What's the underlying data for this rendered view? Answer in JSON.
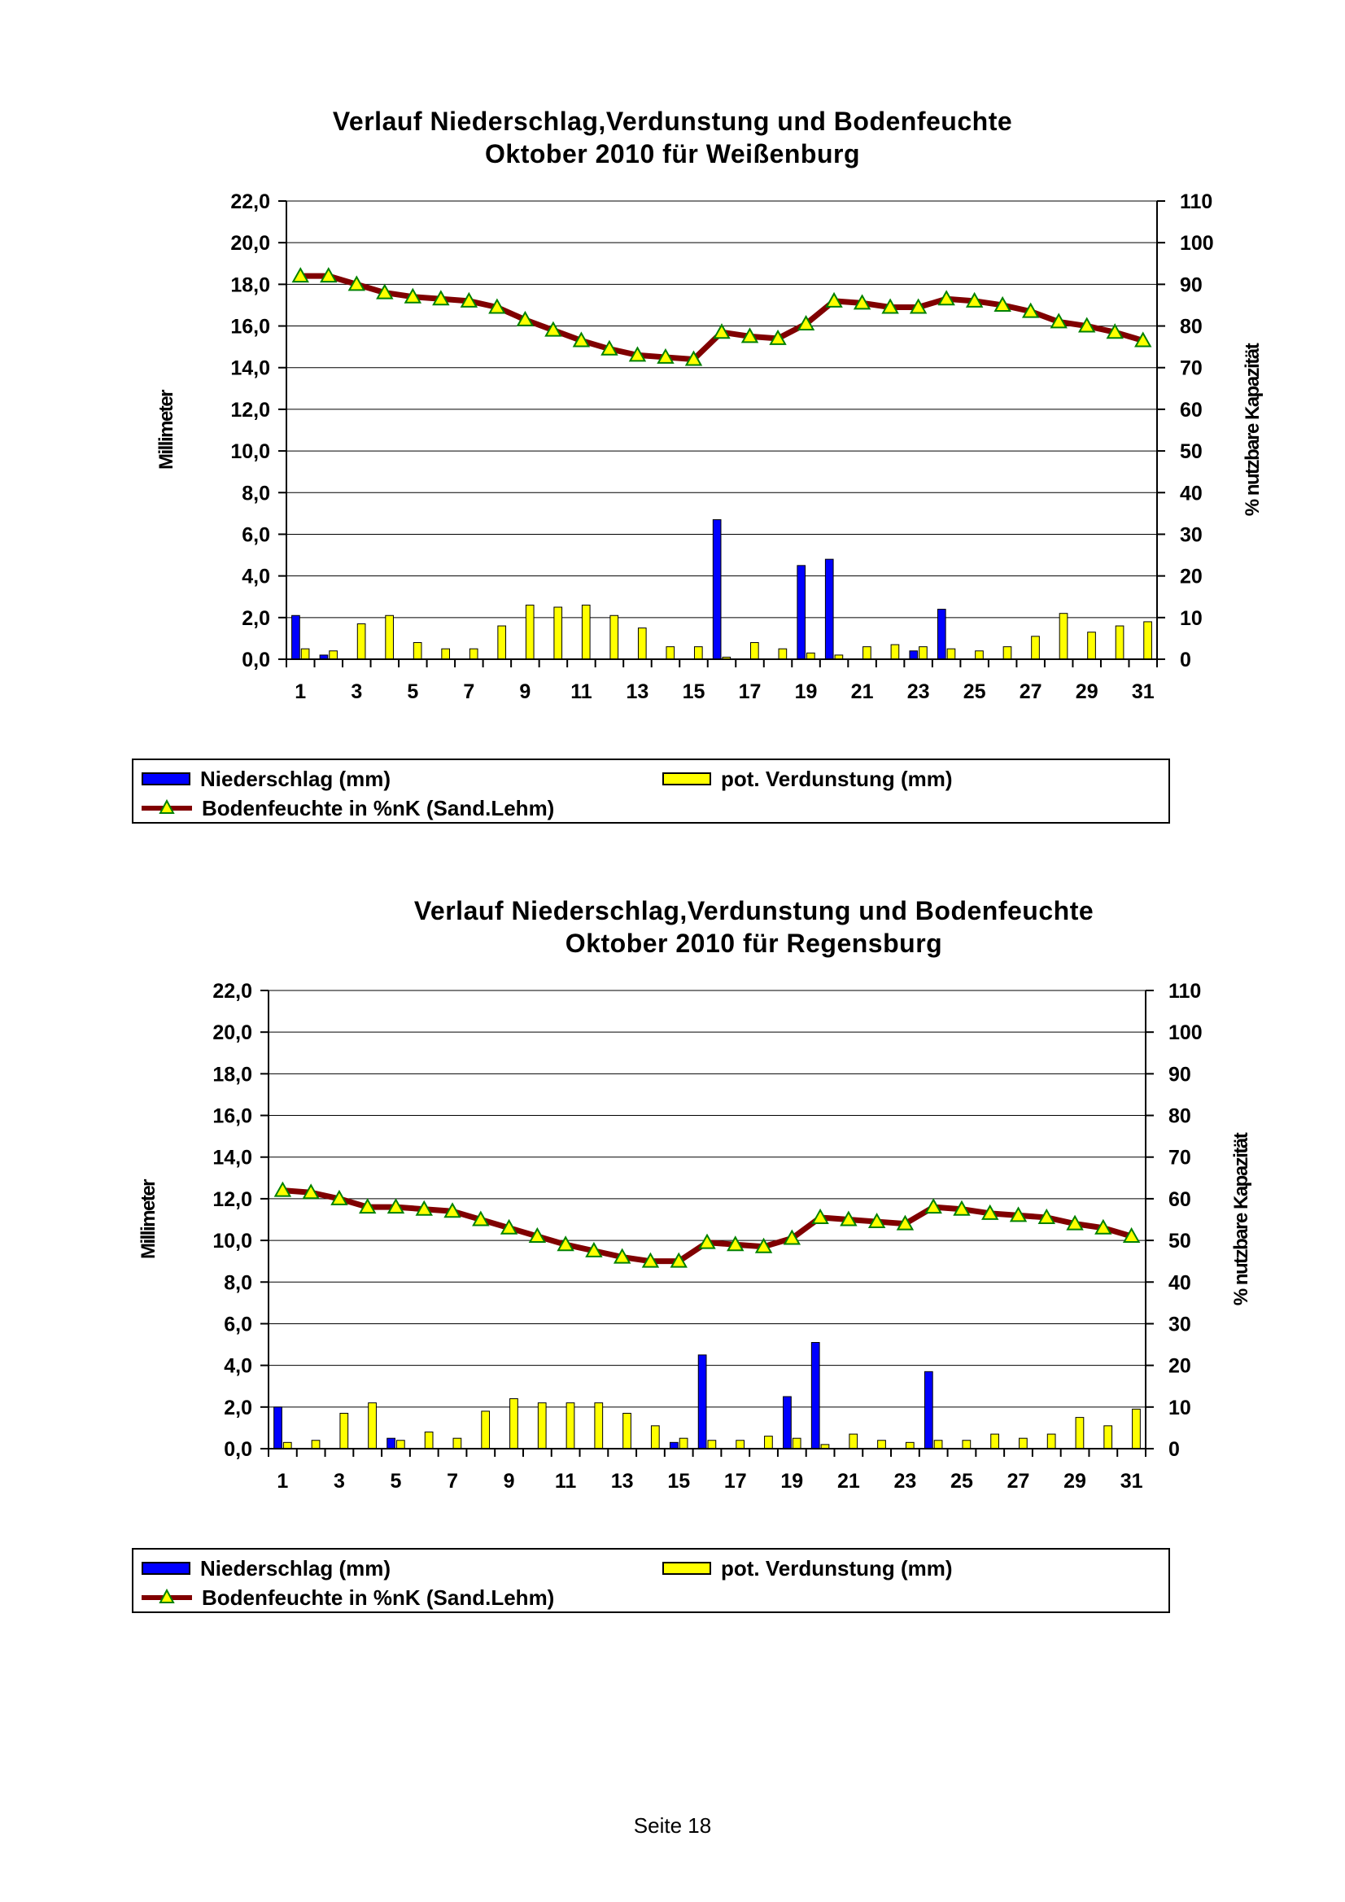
{
  "page": {
    "footer": "Seite 18"
  },
  "chart_data": [
    {
      "type": "bar",
      "title": "Verlauf Niederschlag,Verdunstung und Bodenfeuchte",
      "subtitle": "Oktober 2010 für Weißenburg",
      "ylabel": "Millimeter",
      "y2label": "% nutzbare Kapazität",
      "ylim": [
        0,
        22
      ],
      "y2lim": [
        0,
        110
      ],
      "y_ticks": [
        "0,0",
        "2,0",
        "4,0",
        "6,0",
        "8,0",
        "10,0",
        "12,0",
        "14,0",
        "16,0",
        "18,0",
        "20,0",
        "22,0"
      ],
      "y2_ticks": [
        "0",
        "10",
        "20",
        "30",
        "40",
        "50",
        "60",
        "70",
        "80",
        "90",
        "100",
        "110"
      ],
      "x_tick_labels": [
        "1",
        "3",
        "5",
        "7",
        "9",
        "11",
        "13",
        "15",
        "17",
        "19",
        "21",
        "23",
        "25",
        "27",
        "29",
        "31"
      ],
      "x": [
        1,
        2,
        3,
        4,
        5,
        6,
        7,
        8,
        9,
        10,
        11,
        12,
        13,
        14,
        15,
        16,
        17,
        18,
        19,
        20,
        21,
        22,
        23,
        24,
        25,
        26,
        27,
        28,
        29,
        30,
        31
      ],
      "grid": true,
      "legend_position": "bottom",
      "series": [
        {
          "name": "Niederschlag (mm)",
          "type": "bar",
          "axis": "left",
          "color": "#0000ff",
          "values": [
            2.1,
            0.2,
            0,
            0,
            0,
            0,
            0,
            0,
            0,
            0,
            0,
            0,
            0,
            0,
            0,
            6.7,
            0,
            0,
            4.5,
            4.8,
            0,
            0,
            0.4,
            2.4,
            0,
            0,
            0,
            0,
            0,
            0,
            0
          ]
        },
        {
          "name": "pot. Verdunstung (mm)",
          "type": "bar",
          "axis": "left",
          "color": "#ffff00",
          "values": [
            0.5,
            0.4,
            1.7,
            2.1,
            0.8,
            0.5,
            0.5,
            1.6,
            2.6,
            2.5,
            2.6,
            2.1,
            1.5,
            0.6,
            0.6,
            0.1,
            0.8,
            0.5,
            0.3,
            0.2,
            0.6,
            0.7,
            0.6,
            0.5,
            0.4,
            0.6,
            1.1,
            2.2,
            1.3,
            1.6,
            1.8
          ]
        },
        {
          "name": "Bodenfeuchte in %nK (Sand.Lehm)",
          "type": "line",
          "axis": "right",
          "color": "#800000",
          "marker_color": "#ffff00",
          "values": [
            92,
            92,
            90,
            88,
            87,
            86.5,
            86,
            84.5,
            81.5,
            79,
            76.5,
            74.5,
            73,
            72.5,
            72,
            78.5,
            77.5,
            77,
            80.5,
            86,
            85.5,
            84.5,
            84.5,
            86.5,
            86,
            85,
            83.5,
            81,
            80,
            78.5,
            76.5
          ]
        }
      ]
    },
    {
      "type": "bar",
      "title": "Verlauf Niederschlag,Verdunstung und Bodenfeuchte",
      "subtitle": "Oktober 2010 für Regensburg",
      "ylabel": "Millimeter",
      "y2label": "% nutzbare Kapazität",
      "ylim": [
        0,
        22
      ],
      "y2lim": [
        0,
        110
      ],
      "y_ticks": [
        "0,0",
        "2,0",
        "4,0",
        "6,0",
        "8,0",
        "10,0",
        "12,0",
        "14,0",
        "16,0",
        "18,0",
        "20,0",
        "22,0"
      ],
      "y2_ticks": [
        "0",
        "10",
        "20",
        "30",
        "40",
        "50",
        "60",
        "70",
        "80",
        "90",
        "100",
        "110"
      ],
      "x_tick_labels": [
        "1",
        "3",
        "5",
        "7",
        "9",
        "11",
        "13",
        "15",
        "17",
        "19",
        "21",
        "23",
        "25",
        "27",
        "29",
        "31"
      ],
      "x": [
        1,
        2,
        3,
        4,
        5,
        6,
        7,
        8,
        9,
        10,
        11,
        12,
        13,
        14,
        15,
        16,
        17,
        18,
        19,
        20,
        21,
        22,
        23,
        24,
        25,
        26,
        27,
        28,
        29,
        30,
        31
      ],
      "grid": true,
      "legend_position": "bottom",
      "series": [
        {
          "name": "Niederschlag (mm)",
          "type": "bar",
          "axis": "left",
          "color": "#0000ff",
          "values": [
            2.0,
            0,
            0,
            0,
            0.5,
            0,
            0,
            0,
            0,
            0,
            0,
            0,
            0,
            0,
            0.3,
            4.5,
            0,
            0,
            2.5,
            5.1,
            0,
            0,
            0,
            3.7,
            0,
            0,
            0,
            0,
            0,
            0,
            0
          ]
        },
        {
          "name": "pot. Verdunstung (mm)",
          "type": "bar",
          "axis": "left",
          "color": "#ffff00",
          "values": [
            0.3,
            0.4,
            1.7,
            2.2,
            0.4,
            0.8,
            0.5,
            1.8,
            2.4,
            2.2,
            2.2,
            2.2,
            1.7,
            1.1,
            0.5,
            0.4,
            0.4,
            0.6,
            0.5,
            0.2,
            0.7,
            0.4,
            0.3,
            0.4,
            0.4,
            0.7,
            0.5,
            0.7,
            1.5,
            1.1,
            1.9
          ]
        },
        {
          "name": "Bodenfeuchte in %nK (Sand.Lehm)",
          "type": "line",
          "axis": "right",
          "color": "#800000",
          "marker_color": "#ffff00",
          "values": [
            62,
            61.5,
            60,
            58,
            58,
            57.5,
            57,
            55,
            53,
            51,
            49,
            47.5,
            46,
            45,
            45,
            49.5,
            49,
            48.5,
            50.5,
            55.5,
            55,
            54.5,
            54,
            58,
            57.5,
            56.5,
            56,
            55.5,
            54,
            53,
            51
          ]
        }
      ]
    }
  ]
}
